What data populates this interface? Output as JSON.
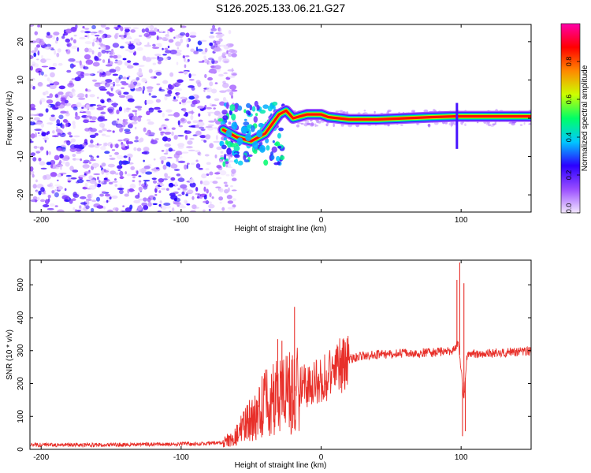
{
  "figure": {
    "title": "S126.2025.133.06.21.G27"
  },
  "chart_data": [
    {
      "type": "heatmap",
      "title": "S126.2025.133.06.21.G27",
      "xlabel": "Height of straight line (km)",
      "ylabel": "Frequency (Hz)",
      "xlim": [
        -208,
        150
      ],
      "ylim": [
        -24.5,
        24.5
      ],
      "xticks": [
        -200,
        -100,
        0,
        100
      ],
      "yticks": [
        -20,
        -10,
        0,
        10,
        20
      ],
      "colorbar": {
        "label": "Normalized spectral amplitude",
        "range": [
          0,
          1
        ],
        "ticks": [
          "0.0",
          "0.2",
          "0.4",
          "0.6",
          "0.8"
        ],
        "colors": [
          "#f2e6ff",
          "#9a4dff",
          "#2b00ff",
          "#00c8ff",
          "#00ff66",
          "#ccff00",
          "#ff8800",
          "#ff0000",
          "#ff00aa"
        ]
      },
      "ridge": [
        {
          "x": -70,
          "f": -3
        },
        {
          "x": -60,
          "f": -5
        },
        {
          "x": -50,
          "f": -6
        },
        {
          "x": -40,
          "f": -4
        },
        {
          "x": -30,
          "f": 1
        },
        {
          "x": -25,
          "f": 2
        },
        {
          "x": -20,
          "f": 0
        },
        {
          "x": -15,
          "f": 0.5
        },
        {
          "x": -10,
          "f": 1
        },
        {
          "x": -5,
          "f": 1
        },
        {
          "x": 0,
          "f": 1
        },
        {
          "x": 5,
          "f": 0.3
        },
        {
          "x": 20,
          "f": -0.3
        },
        {
          "x": 40,
          "f": -0.3
        },
        {
          "x": 60,
          "f": 0
        },
        {
          "x": 80,
          "f": 0.3
        },
        {
          "x": 95,
          "f": 0.5
        },
        {
          "x": 100,
          "f": 0.5
        },
        {
          "x": 110,
          "f": 0.5
        },
        {
          "x": 130,
          "f": 0.5
        },
        {
          "x": 150,
          "f": 0.5
        }
      ]
    },
    {
      "type": "line",
      "xlabel": "Height of straight line (km)",
      "ylabel": "SNR (10 * v/v)",
      "xlim": [
        -208,
        150
      ],
      "ylim": [
        0,
        575
      ],
      "xticks": [
        -200,
        -100,
        0,
        100
      ],
      "yticks": [
        0,
        100,
        200,
        300,
        400,
        500
      ],
      "color": "#e8302a",
      "series": [
        {
          "values": [
            [
              -208,
              14
            ],
            [
              -180,
              13
            ],
            [
              -150,
              14
            ],
            [
              -120,
              15
            ],
            [
              -100,
              16
            ],
            [
              -80,
              18
            ],
            [
              -70,
              22
            ],
            [
              -62,
              38
            ],
            [
              -55,
              70
            ],
            [
              -45,
              115
            ],
            [
              -35,
              160
            ],
            [
              -25,
              165
            ],
            [
              -18,
              180
            ],
            [
              -10,
              195
            ],
            [
              -5,
              210
            ],
            [
              0,
              215
            ],
            [
              5,
              228
            ],
            [
              10,
              250
            ],
            [
              20,
              275
            ],
            [
              30,
              285
            ],
            [
              40,
              288
            ],
            [
              60,
              292
            ],
            [
              80,
              294
            ],
            [
              95,
              300
            ],
            [
              98,
              325
            ],
            [
              100,
              250
            ],
            [
              102,
              155
            ],
            [
              104,
              280
            ],
            [
              110,
              290
            ],
            [
              130,
              294
            ],
            [
              150,
              298
            ]
          ]
        }
      ],
      "spikes": [
        {
          "x": -31,
          "snr": 335
        },
        {
          "x": -28,
          "snr": 330
        },
        {
          "x": -19,
          "snr": 433
        },
        {
          "x": 97,
          "snr": 515
        },
        {
          "x": 99,
          "snr": 568
        },
        {
          "x": 101,
          "snr": 40
        },
        {
          "x": 102,
          "snr": 505
        },
        {
          "x": 103,
          "snr": 55
        }
      ]
    }
  ]
}
